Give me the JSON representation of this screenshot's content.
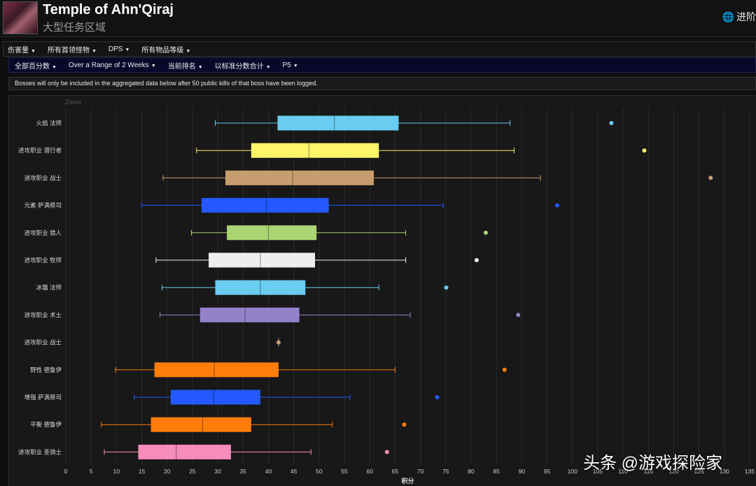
{
  "header": {
    "title": "Temple of Ahn'Qiraj",
    "subtitle": "大型任务区域",
    "progress_label": "进阶"
  },
  "filters_row1": [
    "伤害量",
    "所有首领怪物",
    "DPS",
    "所有物品等级"
  ],
  "filters_row2": [
    "全部百分数",
    "Over a Range of 2 Weeks",
    "当前排名",
    "以标准分数合计",
    "P5"
  ],
  "notice": "Bosses will only be included in the aggregated data below after 50 public kills of that boss have been logged.",
  "watermark": "头条 @游戏探险家",
  "chart_data": {
    "type": "boxplot",
    "zoom_label": "Zoom",
    "xlabel": "积分",
    "xlim": [
      0,
      135
    ],
    "x_ticks": [
      0,
      5,
      10,
      15,
      20,
      25,
      30,
      35,
      40,
      45,
      50,
      55,
      60,
      65,
      70,
      75,
      80,
      85,
      90,
      95,
      100,
      105,
      110,
      115,
      120,
      125,
      130,
      135
    ],
    "grid": true,
    "series": [
      {
        "name": "火焰 法师",
        "min": 29.5,
        "q1": 41.8,
        "median": 53.0,
        "q3": 65.7,
        "max": 87.7,
        "outlier": 107.7,
        "color": "#69ccf0"
      },
      {
        "name": "进攻职业 潜行者",
        "min": 25.8,
        "q1": 36.6,
        "median": 48.0,
        "q3": 61.8,
        "max": 88.5,
        "outlier": 114.2,
        "color": "#fff569"
      },
      {
        "name": "进攻职业 战士",
        "min": 19.2,
        "q1": 31.5,
        "median": 44.8,
        "q3": 60.8,
        "max": 93.7,
        "outlier": 127.3,
        "color": "#c79c6e"
      },
      {
        "name": "元素 萨满祭司",
        "min": 15.0,
        "q1": 26.8,
        "median": 39.6,
        "q3": 51.9,
        "max": 74.5,
        "outlier": 97.0,
        "color": "#2459ff"
      },
      {
        "name": "进攻职业 猎人",
        "min": 24.8,
        "q1": 31.8,
        "median": 40.0,
        "q3": 49.5,
        "max": 67.1,
        "outlier": 82.9,
        "color": "#abd473"
      },
      {
        "name": "进攻职业 牧师",
        "min": 17.8,
        "q1": 28.2,
        "median": 38.4,
        "q3": 49.2,
        "max": 67.1,
        "outlier": 81.1,
        "color": "#eeeeee"
      },
      {
        "name": "冰霜 法师",
        "min": 19.0,
        "q1": 29.5,
        "median": 38.4,
        "q3": 47.3,
        "max": 61.8,
        "outlier": 75.1,
        "color": "#69ccf0"
      },
      {
        "name": "进攻职业 术士",
        "min": 18.6,
        "q1": 26.5,
        "median": 35.4,
        "q3": 46.1,
        "max": 68.0,
        "outlier": 89.3,
        "color": "#9482c9"
      },
      {
        "name": "进攻职业 战士",
        "min": 42.0,
        "q1": 42.0,
        "median": 42.0,
        "q3": 42.0,
        "max": 42.0,
        "outlier": null,
        "color": "#c79c6e"
      },
      {
        "name": "野性 德鲁伊",
        "min": 9.8,
        "q1": 17.5,
        "median": 29.3,
        "q3": 42.0,
        "max": 65.0,
        "outlier": 86.6,
        "color": "#ff7d0a"
      },
      {
        "name": "增强 萨满祭司",
        "min": 13.5,
        "q1": 20.7,
        "median": 29.2,
        "q3": 38.4,
        "max": 56.1,
        "outlier": 73.3,
        "color": "#2459ff"
      },
      {
        "name": "平衡 德鲁伊",
        "min": 7.0,
        "q1": 16.8,
        "median": 27.0,
        "q3": 36.6,
        "max": 52.6,
        "outlier": 66.8,
        "color": "#ff7d0a"
      },
      {
        "name": "进攻职业 圣骑士",
        "min": 7.6,
        "q1": 14.3,
        "median": 21.8,
        "q3": 32.6,
        "max": 48.4,
        "outlier": 63.4,
        "color": "#f58cba"
      }
    ]
  }
}
